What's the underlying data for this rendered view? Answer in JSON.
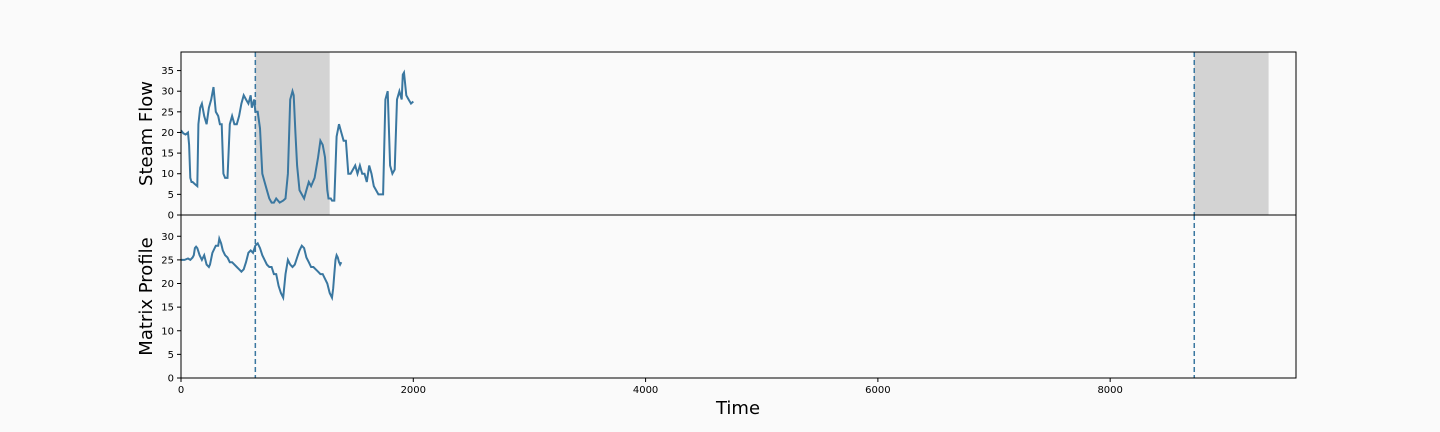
{
  "chart_data": [
    {
      "type": "line",
      "panel": "top",
      "title": "",
      "ylabel": "Steam Flow",
      "xlabel": "",
      "xlim": [
        0,
        9600
      ],
      "ylim": [
        0,
        39.5
      ],
      "yticks": [
        0,
        5,
        10,
        15,
        20,
        25,
        30,
        35
      ],
      "shared_x_axis": true,
      "color": "#3a77a0",
      "shaded_regions": [
        [
          640,
          1280
        ],
        [
          8724,
          9364
        ]
      ],
      "vlines": [
        640,
        8724
      ],
      "x": [
        0,
        20,
        40,
        60,
        70,
        80,
        90,
        100,
        120,
        140,
        150,
        165,
        180,
        200,
        220,
        240,
        260,
        280,
        300,
        320,
        335,
        350,
        365,
        380,
        400,
        420,
        440,
        460,
        480,
        500,
        520,
        540,
        560,
        580,
        600,
        610,
        630,
        640,
        660,
        680,
        700,
        720,
        740,
        760,
        780,
        800,
        820,
        850,
        880,
        900,
        920,
        940,
        960,
        970,
        985,
        1000,
        1020,
        1040,
        1060,
        1080,
        1100,
        1120,
        1150,
        1180,
        1200,
        1220,
        1240,
        1260,
        1270,
        1280,
        1290,
        1300,
        1320,
        1340,
        1360,
        1380,
        1400,
        1420,
        1440,
        1460,
        1480,
        1500,
        1520,
        1540,
        1560,
        1580,
        1600,
        1620,
        1640,
        1660,
        1680,
        1700,
        1720,
        1740,
        1760,
        1780,
        1800,
        1820,
        1840,
        1860,
        1880,
        1900,
        1910,
        1920,
        1940,
        1960,
        1980,
        2000
      ],
      "values": [
        20.5,
        19.8,
        19.5,
        20,
        17,
        9,
        8,
        8,
        7.5,
        7,
        22,
        26,
        27,
        24,
        22,
        26,
        28,
        31,
        25,
        24,
        22,
        22,
        10,
        9,
        9,
        22,
        24,
        22,
        22,
        24,
        27,
        29,
        28,
        27,
        29,
        26,
        28,
        25,
        25,
        21,
        10,
        8,
        6,
        4,
        3,
        3,
        4,
        3,
        3.5,
        4,
        10,
        28,
        30,
        29,
        20,
        12,
        6,
        5,
        4,
        6,
        8,
        7,
        9,
        14,
        18,
        17,
        14,
        6,
        4,
        4,
        4,
        3.5,
        3.5,
        19,
        22,
        20,
        18,
        18,
        10,
        10,
        11,
        12,
        10,
        12,
        10,
        10,
        8,
        12,
        10,
        7,
        6,
        5,
        5,
        5,
        28,
        30,
        12,
        10,
        11,
        28,
        30,
        28,
        34,
        34.5,
        29,
        28,
        27,
        27.5
      ]
    },
    {
      "type": "line",
      "panel": "bottom",
      "title": "",
      "ylabel": "Matrix Profile",
      "xlabel": "Time",
      "xlim": [
        0,
        9600
      ],
      "ylim": [
        0,
        34.5
      ],
      "yticks": [
        0,
        5,
        10,
        15,
        20,
        25,
        30
      ],
      "xticks": [
        0,
        2000,
        4000,
        6000,
        8000
      ],
      "color": "#3a77a0",
      "vlines": [
        640,
        8724
      ],
      "x": [
        0,
        30,
        60,
        80,
        100,
        110,
        120,
        130,
        140,
        160,
        180,
        200,
        220,
        240,
        250,
        270,
        300,
        320,
        330,
        345,
        360,
        380,
        400,
        420,
        440,
        460,
        480,
        500,
        520,
        540,
        560,
        580,
        600,
        620,
        640,
        650,
        660,
        680,
        700,
        720,
        740,
        760,
        780,
        800,
        820,
        840,
        860,
        880,
        900,
        920,
        940,
        960,
        980,
        1000,
        1020,
        1040,
        1060,
        1080,
        1100,
        1120,
        1140,
        1160,
        1180,
        1200,
        1220,
        1240,
        1260,
        1280,
        1300,
        1310,
        1320,
        1330,
        1340,
        1350,
        1360,
        1370,
        1380
      ],
      "values": [
        25,
        25,
        25.3,
        25,
        25.5,
        26,
        27.5,
        27.8,
        27.5,
        26,
        25,
        26,
        24,
        23.5,
        24,
        26.5,
        28,
        28,
        29.5,
        28.5,
        27,
        26,
        25.5,
        24.5,
        24.5,
        24,
        23.5,
        23,
        22.5,
        23,
        24.5,
        26.5,
        27,
        26.5,
        28,
        28.3,
        28.5,
        27.5,
        26,
        25,
        24,
        23.5,
        23.5,
        22,
        22,
        19.5,
        18,
        17,
        22,
        25,
        24,
        23.5,
        24,
        25.5,
        27,
        28,
        27.5,
        25.5,
        24.5,
        23.5,
        23.5,
        23,
        22.5,
        22,
        22,
        21,
        20,
        18,
        17,
        19,
        22,
        25,
        26,
        25.5,
        24.5,
        24,
        24.5
      ]
    }
  ]
}
